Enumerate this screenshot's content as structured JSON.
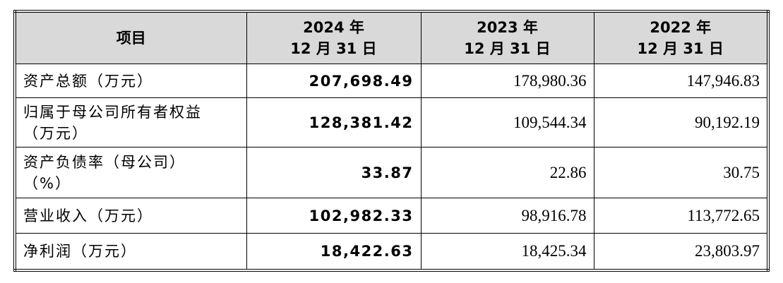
{
  "table": {
    "header": [
      [
        "项目"
      ],
      [
        "2024 年",
        "12 月 31 日"
      ],
      [
        "2023 年",
        "12 月 31 日"
      ],
      [
        "2022 年",
        "12 月 31 日"
      ]
    ],
    "rows": [
      [
        [
          "资产总额（万元）"
        ],
        "207,698.49",
        "178,980.36",
        "147,946.83"
      ],
      [
        [
          "归属于母公司所有者权益",
          "（万元）"
        ],
        "128,381.42",
        "109,544.34",
        "90,192.19"
      ],
      [
        [
          "资产负债率（母公司）",
          "（%）"
        ],
        "33.87",
        "22.86",
        "30.75"
      ],
      [
        [
          "营业收入（万元）"
        ],
        "102,982.33",
        "98,916.78",
        "113,772.65"
      ],
      [
        [
          "净利润（万元）"
        ],
        "18,422.63",
        "18,425.34",
        "23,803.97"
      ]
    ]
  }
}
